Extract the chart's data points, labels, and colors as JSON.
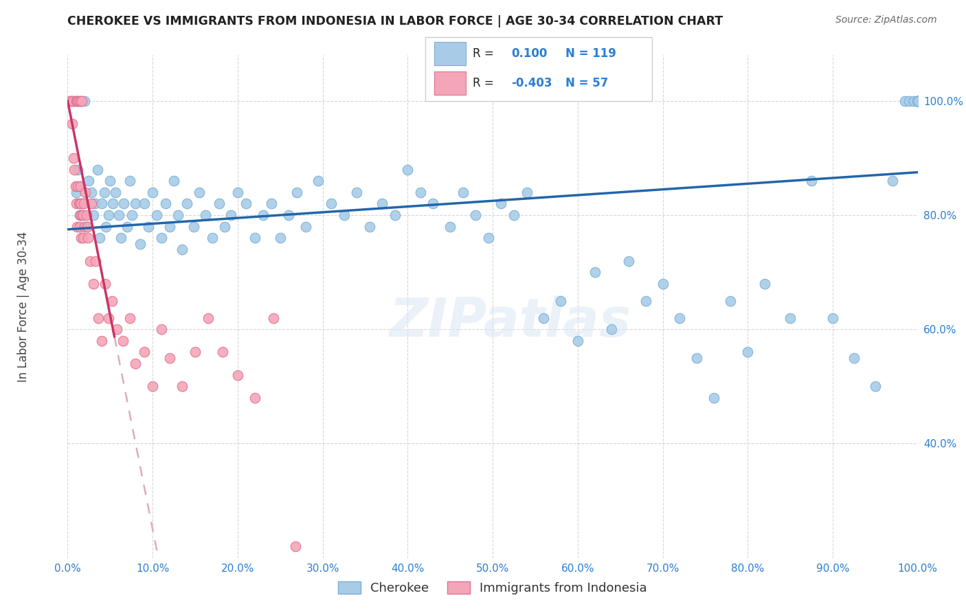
{
  "title": "CHEROKEE VS IMMIGRANTS FROM INDONESIA IN LABOR FORCE | AGE 30-34 CORRELATION CHART",
  "source": "Source: ZipAtlas.com",
  "ylabel": "In Labor Force | Age 30-34",
  "xlim": [
    0.0,
    1.0
  ],
  "ylim": [
    0.2,
    1.08
  ],
  "x_ticks": [
    0.0,
    0.1,
    0.2,
    0.3,
    0.4,
    0.5,
    0.6,
    0.7,
    0.8,
    0.9,
    1.0
  ],
  "y_ticks": [
    0.4,
    0.6,
    0.8,
    1.0
  ],
  "x_tick_labels": [
    "0.0%",
    "10.0%",
    "20.0%",
    "30.0%",
    "40.0%",
    "50.0%",
    "60.0%",
    "70.0%",
    "80.0%",
    "90.0%",
    "100.0%"
  ],
  "y_tick_labels": [
    "40.0%",
    "60.0%",
    "80.0%",
    "100.0%"
  ],
  "legend_label1": "Cherokee",
  "legend_label2": "Immigrants from Indonesia",
  "r1": 0.1,
  "n1": 119,
  "r2": -0.403,
  "n2": 57,
  "blue_color": "#a8cce8",
  "blue_edge_color": "#7aaed4",
  "pink_color": "#f4a6b8",
  "pink_edge_color": "#e07090",
  "trend_blue": "#2266aa",
  "trend_pink_solid": "#cc3366",
  "trend_pink_dashed": "#ddaabc",
  "watermark": "ZIPatlas",
  "blue_trend_x0": 0.0,
  "blue_trend_y0": 0.775,
  "blue_trend_x1": 1.0,
  "blue_trend_y1": 0.875,
  "pink_trend_x0": 0.0,
  "pink_trend_y0": 1.0,
  "pink_trend_x1_solid": 0.055,
  "pink_trend_x1_dashed_end": 0.38,
  "pink_trend_slope": -7.5,
  "blue_scatter_x": [
    0.005,
    0.008,
    0.01,
    0.012,
    0.014,
    0.015,
    0.016,
    0.018,
    0.02,
    0.022,
    0.025,
    0.028,
    0.03,
    0.032,
    0.035,
    0.038,
    0.04,
    0.043,
    0.045,
    0.048,
    0.05,
    0.053,
    0.056,
    0.06,
    0.063,
    0.066,
    0.07,
    0.073,
    0.076,
    0.08,
    0.085,
    0.09,
    0.095,
    0.1,
    0.105,
    0.11,
    0.115,
    0.12,
    0.125,
    0.13,
    0.135,
    0.14,
    0.148,
    0.155,
    0.162,
    0.17,
    0.178,
    0.185,
    0.192,
    0.2,
    0.21,
    0.22,
    0.23,
    0.24,
    0.25,
    0.26,
    0.27,
    0.28,
    0.295,
    0.31,
    0.325,
    0.34,
    0.355,
    0.37,
    0.385,
    0.4,
    0.415,
    0.43,
    0.45,
    0.465,
    0.48,
    0.495,
    0.51,
    0.525,
    0.54,
    0.56,
    0.58,
    0.6,
    0.62,
    0.64,
    0.66,
    0.68,
    0.7,
    0.72,
    0.74,
    0.76,
    0.78,
    0.8,
    0.82,
    0.85,
    0.875,
    0.9,
    0.925,
    0.95,
    0.97,
    0.985,
    0.99,
    0.995,
    1.0,
    1.0,
    1.0,
    1.0,
    1.0,
    1.0,
    1.0,
    1.0,
    1.0,
    1.0,
    1.0,
    1.0,
    1.0,
    1.0,
    1.0,
    1.0,
    1.0
  ],
  "blue_scatter_y": [
    1.0,
    1.0,
    0.84,
    0.88,
    0.8,
    0.85,
    1.0,
    0.82,
    1.0,
    0.78,
    0.86,
    0.84,
    0.8,
    0.82,
    0.88,
    0.76,
    0.82,
    0.84,
    0.78,
    0.8,
    0.86,
    0.82,
    0.84,
    0.8,
    0.76,
    0.82,
    0.78,
    0.86,
    0.8,
    0.82,
    0.75,
    0.82,
    0.78,
    0.84,
    0.8,
    0.76,
    0.82,
    0.78,
    0.86,
    0.8,
    0.74,
    0.82,
    0.78,
    0.84,
    0.8,
    0.76,
    0.82,
    0.78,
    0.8,
    0.84,
    0.82,
    0.76,
    0.8,
    0.82,
    0.76,
    0.8,
    0.84,
    0.78,
    0.86,
    0.82,
    0.8,
    0.84,
    0.78,
    0.82,
    0.8,
    0.88,
    0.84,
    0.82,
    0.78,
    0.84,
    0.8,
    0.76,
    0.82,
    0.8,
    0.84,
    0.62,
    0.65,
    0.58,
    0.7,
    0.6,
    0.72,
    0.65,
    0.68,
    0.62,
    0.55,
    0.48,
    0.65,
    0.56,
    0.68,
    0.62,
    0.86,
    0.62,
    0.55,
    0.5,
    0.86,
    1.0,
    1.0,
    1.0,
    1.0,
    1.0,
    1.0,
    1.0,
    1.0,
    1.0,
    1.0,
    1.0,
    1.0,
    1.0,
    1.0,
    1.0,
    1.0,
    1.0,
    1.0,
    1.0,
    1.0
  ],
  "pink_scatter_x": [
    0.003,
    0.004,
    0.005,
    0.006,
    0.007,
    0.008,
    0.009,
    0.01,
    0.01,
    0.011,
    0.011,
    0.012,
    0.012,
    0.013,
    0.013,
    0.014,
    0.014,
    0.015,
    0.015,
    0.015,
    0.016,
    0.016,
    0.017,
    0.017,
    0.018,
    0.018,
    0.019,
    0.02,
    0.021,
    0.022,
    0.023,
    0.024,
    0.026,
    0.028,
    0.03,
    0.033,
    0.036,
    0.04,
    0.044,
    0.048,
    0.052,
    0.058,
    0.065,
    0.073,
    0.08,
    0.09,
    0.1,
    0.11,
    0.12,
    0.135,
    0.15,
    0.165,
    0.182,
    0.2,
    0.22,
    0.242,
    0.268
  ],
  "pink_scatter_y": [
    1.0,
    1.0,
    0.96,
    1.0,
    0.9,
    0.88,
    0.85,
    1.0,
    0.82,
    1.0,
    0.78,
    0.85,
    1.0,
    0.82,
    1.0,
    0.78,
    0.82,
    0.8,
    0.85,
    1.0,
    0.76,
    0.82,
    0.8,
    1.0,
    0.76,
    0.8,
    0.82,
    0.78,
    0.84,
    0.8,
    0.78,
    0.76,
    0.72,
    0.82,
    0.68,
    0.72,
    0.62,
    0.58,
    0.68,
    0.62,
    0.65,
    0.6,
    0.58,
    0.62,
    0.54,
    0.56,
    0.5,
    0.6,
    0.55,
    0.5,
    0.56,
    0.62,
    0.56,
    0.52,
    0.48,
    0.62,
    0.22
  ]
}
